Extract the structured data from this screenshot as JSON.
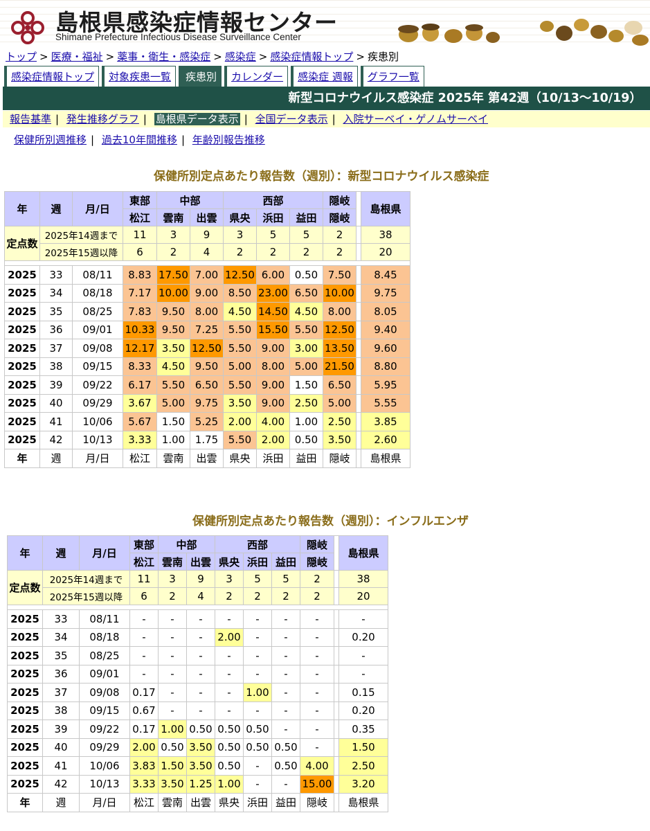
{
  "header": {
    "site_title": "島根県感染症情報センター",
    "site_subtitle": "Shimane Prefecture Infectious Disease Surveillance Center"
  },
  "breadcrumb": [
    "トップ",
    "医療・福祉",
    "薬事・衛生・感染症",
    "感染症",
    "感染症情報トップ",
    "疾患別"
  ],
  "breadcrumb_sep": ">",
  "tabs": [
    "感染症情報トップ",
    "対象疾患一覧",
    "疾患別",
    "カレンダー",
    "感染症 週報",
    "グラフ一覧"
  ],
  "active_tab": "疾患別",
  "title_bar": "新型コロナウイルス感染症 2025年 第42週（10/13〜10/19）",
  "subnav1": [
    "報告基準",
    "発生推移グラフ",
    "島根県データ表示",
    "全国データ表示",
    "入院サーベイ・ゲノムサーベイ"
  ],
  "subnav1_active": "島根県データ表示",
  "subnav2": [
    "保健所別週推移",
    "過去10年間推移",
    "年齢別報告推移"
  ],
  "tables": [
    {
      "title": "保健所別定点あたり報告数（週別）：新型コロナウイルス感染症",
      "regions": [
        "東部",
        "中部",
        "西部",
        "隠岐"
      ],
      "centers": [
        "松江",
        "雲南",
        "出雲",
        "県央",
        "浜田",
        "益田",
        "隠岐"
      ],
      "total_label": "島根県",
      "col_year": "年",
      "col_week": "週",
      "col_date": "月/日",
      "sentinel_label": "定点数",
      "sentinel_rows": [
        {
          "label": "2025年14週まで",
          "values": [
            "11",
            "3",
            "9",
            "3",
            "5",
            "5",
            "2"
          ],
          "total": "38"
        },
        {
          "label": "2025年15週以降",
          "values": [
            "6",
            "2",
            "4",
            "2",
            "2",
            "2",
            "2"
          ],
          "total": "20"
        }
      ],
      "rows": [
        {
          "year": "2025",
          "week": "33",
          "date": "08/11",
          "values": [
            "8.83",
            "17.50",
            "7.00",
            "12.50",
            "6.00",
            "0.50",
            "7.50"
          ],
          "levels": [
            2,
            3,
            2,
            3,
            2,
            0,
            2
          ],
          "total": "8.45",
          "total_level": 2
        },
        {
          "year": "2025",
          "week": "34",
          "date": "08/18",
          "values": [
            "7.17",
            "10.00",
            "9.00",
            "8.50",
            "23.00",
            "6.50",
            "10.00"
          ],
          "levels": [
            2,
            3,
            2,
            2,
            3,
            2,
            3
          ],
          "total": "9.75",
          "total_level": 2
        },
        {
          "year": "2025",
          "week": "35",
          "date": "08/25",
          "values": [
            "7.83",
            "9.50",
            "8.00",
            "4.50",
            "14.50",
            "4.50",
            "8.00"
          ],
          "levels": [
            2,
            2,
            2,
            1,
            3,
            1,
            2
          ],
          "total": "8.05",
          "total_level": 2
        },
        {
          "year": "2025",
          "week": "36",
          "date": "09/01",
          "values": [
            "10.33",
            "9.50",
            "7.25",
            "5.50",
            "15.50",
            "5.50",
            "12.50"
          ],
          "levels": [
            3,
            2,
            2,
            2,
            3,
            2,
            3
          ],
          "total": "9.40",
          "total_level": 2
        },
        {
          "year": "2025",
          "week": "37",
          "date": "09/08",
          "values": [
            "12.17",
            "3.50",
            "12.50",
            "5.50",
            "9.00",
            "3.00",
            "13.50"
          ],
          "levels": [
            3,
            1,
            3,
            2,
            2,
            1,
            3
          ],
          "total": "9.60",
          "total_level": 2
        },
        {
          "year": "2025",
          "week": "38",
          "date": "09/15",
          "values": [
            "8.33",
            "4.50",
            "9.50",
            "5.00",
            "8.00",
            "5.00",
            "21.50"
          ],
          "levels": [
            2,
            1,
            2,
            2,
            2,
            2,
            3
          ],
          "total": "8.80",
          "total_level": 2
        },
        {
          "year": "2025",
          "week": "39",
          "date": "09/22",
          "values": [
            "6.17",
            "5.50",
            "6.50",
            "5.50",
            "9.00",
            "1.50",
            "6.50"
          ],
          "levels": [
            2,
            2,
            2,
            2,
            2,
            0,
            2
          ],
          "total": "5.95",
          "total_level": 2
        },
        {
          "year": "2025",
          "week": "40",
          "date": "09/29",
          "values": [
            "3.67",
            "5.00",
            "9.75",
            "3.50",
            "9.00",
            "2.50",
            "5.00"
          ],
          "levels": [
            1,
            2,
            2,
            1,
            2,
            1,
            2
          ],
          "total": "5.55",
          "total_level": 2
        },
        {
          "year": "2025",
          "week": "41",
          "date": "10/06",
          "values": [
            "5.67",
            "1.50",
            "5.25",
            "2.00",
            "4.00",
            "1.00",
            "2.50"
          ],
          "levels": [
            2,
            0,
            2,
            1,
            1,
            0,
            1
          ],
          "total": "3.85",
          "total_level": 1
        },
        {
          "year": "2025",
          "week": "42",
          "date": "10/13",
          "values": [
            "3.33",
            "1.00",
            "1.75",
            "5.50",
            "2.00",
            "0.50",
            "3.50"
          ],
          "levels": [
            1,
            0,
            0,
            2,
            1,
            0,
            1
          ],
          "total": "2.60",
          "total_level": 1
        }
      ]
    },
    {
      "title": "保健所別定点あたり報告数（週別）：インフルエンザ",
      "regions": [
        "東部",
        "中部",
        "西部",
        "隠岐"
      ],
      "centers": [
        "松江",
        "雲南",
        "出雲",
        "県央",
        "浜田",
        "益田",
        "隠岐"
      ],
      "total_label": "島根県",
      "col_year": "年",
      "col_week": "週",
      "col_date": "月/日",
      "sentinel_label": "定点数",
      "sentinel_rows": [
        {
          "label": "2025年14週まで",
          "values": [
            "11",
            "3",
            "9",
            "3",
            "5",
            "5",
            "2"
          ],
          "total": "38"
        },
        {
          "label": "2025年15週以降",
          "values": [
            "6",
            "2",
            "4",
            "2",
            "2",
            "2",
            "2"
          ],
          "total": "20"
        }
      ],
      "rows": [
        {
          "year": "2025",
          "week": "33",
          "date": "08/11",
          "values": [
            "-",
            "-",
            "-",
            "-",
            "-",
            "-",
            "-"
          ],
          "levels": [
            0,
            0,
            0,
            0,
            0,
            0,
            0
          ],
          "total": "-",
          "total_level": 0
        },
        {
          "year": "2025",
          "week": "34",
          "date": "08/18",
          "values": [
            "-",
            "-",
            "-",
            "2.00",
            "-",
            "-",
            "-"
          ],
          "levels": [
            0,
            0,
            0,
            1,
            0,
            0,
            0
          ],
          "total": "0.20",
          "total_level": 0
        },
        {
          "year": "2025",
          "week": "35",
          "date": "08/25",
          "values": [
            "-",
            "-",
            "-",
            "-",
            "-",
            "-",
            "-"
          ],
          "levels": [
            0,
            0,
            0,
            0,
            0,
            0,
            0
          ],
          "total": "-",
          "total_level": 0
        },
        {
          "year": "2025",
          "week": "36",
          "date": "09/01",
          "values": [
            "-",
            "-",
            "-",
            "-",
            "-",
            "-",
            "-"
          ],
          "levels": [
            0,
            0,
            0,
            0,
            0,
            0,
            0
          ],
          "total": "-",
          "total_level": 0
        },
        {
          "year": "2025",
          "week": "37",
          "date": "09/08",
          "values": [
            "0.17",
            "-",
            "-",
            "-",
            "1.00",
            "-",
            "-"
          ],
          "levels": [
            0,
            0,
            0,
            0,
            1,
            0,
            0
          ],
          "total": "0.15",
          "total_level": 0
        },
        {
          "year": "2025",
          "week": "38",
          "date": "09/15",
          "values": [
            "0.67",
            "-",
            "-",
            "-",
            "-",
            "-",
            "-"
          ],
          "levels": [
            0,
            0,
            0,
            0,
            0,
            0,
            0
          ],
          "total": "0.20",
          "total_level": 0
        },
        {
          "year": "2025",
          "week": "39",
          "date": "09/22",
          "values": [
            "0.17",
            "1.00",
            "0.50",
            "0.50",
            "0.50",
            "-",
            "-"
          ],
          "levels": [
            0,
            1,
            0,
            0,
            0,
            0,
            0
          ],
          "total": "0.35",
          "total_level": 0
        },
        {
          "year": "2025",
          "week": "40",
          "date": "09/29",
          "values": [
            "2.00",
            "0.50",
            "3.50",
            "0.50",
            "0.50",
            "0.50",
            "-"
          ],
          "levels": [
            1,
            0,
            1,
            0,
            0,
            0,
            0
          ],
          "total": "1.50",
          "total_level": 1
        },
        {
          "year": "2025",
          "week": "41",
          "date": "10/06",
          "values": [
            "3.83",
            "1.50",
            "3.50",
            "0.50",
            "-",
            "0.50",
            "4.00"
          ],
          "levels": [
            1,
            1,
            1,
            0,
            0,
            0,
            1
          ],
          "total": "2.50",
          "total_level": 1
        },
        {
          "year": "2025",
          "week": "42",
          "date": "10/13",
          "values": [
            "3.33",
            "3.50",
            "1.25",
            "1.00",
            "-",
            "-",
            "15.00"
          ],
          "levels": [
            1,
            1,
            1,
            1,
            0,
            0,
            3
          ],
          "total": "3.20",
          "total_level": 1
        }
      ]
    }
  ],
  "colors": {
    "level_0": "#ffffff",
    "level_1": "#ffff99",
    "level_2": "#fbc493",
    "level_3": "#ff9900",
    "header_cell": "#ccccff",
    "sentinel_cell": "#ffffcc",
    "title_bar": "#1f5147",
    "section_title": "#8a6d1a"
  }
}
